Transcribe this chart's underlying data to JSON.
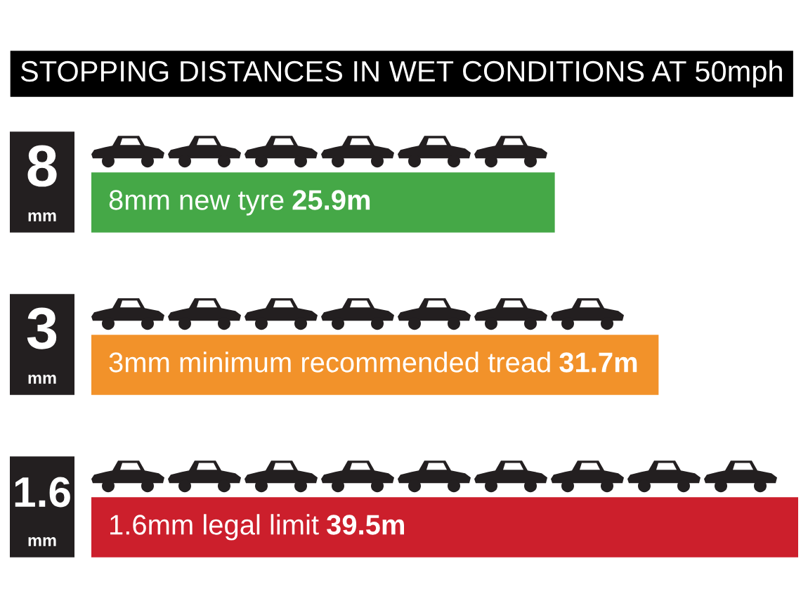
{
  "chart_data": {
    "type": "bar",
    "orientation": "horizontal",
    "title": "STOPPING DISTANCES IN WET CONDITIONS AT 50mph",
    "categories": [
      "8\nmm",
      "3\nmm",
      "1.6\nmm"
    ],
    "values": [
      25.9,
      31.7,
      39.5
    ],
    "colors": [
      "#45a847",
      "#f2922a",
      "#cc1f2c"
    ],
    "value_labels": [
      "25.9m",
      "31.7m",
      "39.5m"
    ],
    "annotations": [
      "8mm new tyre",
      "3mm minimum recommended tread",
      "1.6mm legal limit"
    ],
    "tick_labels": "y"
  }
}
